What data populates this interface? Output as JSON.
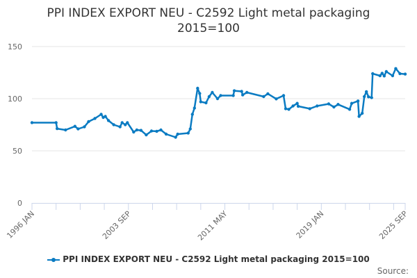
{
  "chart_data": {
    "type": "line",
    "title": "PPI INDEX EXPORT NEU - C2592 Light metal packaging 2015=100",
    "title_lines": [
      "PPI INDEX EXPORT NEU - C2592 Light metal packaging",
      "2015=100"
    ],
    "xlabel": "",
    "ylabel": "",
    "ylim": [
      0,
      150
    ],
    "yticks": [
      0,
      50,
      100,
      150
    ],
    "xrange": [
      "1996-01",
      "2025-09"
    ],
    "xtick_labels": [
      {
        "date": "1996-01",
        "label": "1996 JAN"
      },
      {
        "date": "2003-09",
        "label": "2003 SEP"
      },
      {
        "date": "2011-05",
        "label": "2011 MAY"
      },
      {
        "date": "2019-01",
        "label": "2019 JAN"
      },
      {
        "date": "2025-09",
        "label": "2025 SEP"
      }
    ],
    "grid": "horizontal",
    "legend_position": "bottom",
    "color": "#0a7bc2",
    "series": [
      {
        "name": "PPI INDEX EXPORT NEU - C2592 Light metal packaging 2015=100",
        "points": [
          [
            "1996-01",
            77
          ],
          [
            "1997-12",
            77
          ],
          [
            "1998-01",
            71.3
          ],
          [
            "1998-09",
            70
          ],
          [
            "1999-06",
            73.5
          ],
          [
            "1999-09",
            71
          ],
          [
            "2000-03",
            73
          ],
          [
            "2000-07",
            78
          ],
          [
            "2001-01",
            81
          ],
          [
            "2001-07",
            85
          ],
          [
            "2001-09",
            82
          ],
          [
            "2001-11",
            83
          ],
          [
            "2002-02",
            79
          ],
          [
            "2002-07",
            75
          ],
          [
            "2003-01",
            73
          ],
          [
            "2003-03",
            77
          ],
          [
            "2003-06",
            75
          ],
          [
            "2003-08",
            77
          ],
          [
            "2004-02",
            68
          ],
          [
            "2004-05",
            70
          ],
          [
            "2004-09",
            69.6
          ],
          [
            "2005-02",
            65.3
          ],
          [
            "2005-07",
            69
          ],
          [
            "2005-12",
            68.7
          ],
          [
            "2006-04",
            70
          ],
          [
            "2006-09",
            66
          ],
          [
            "2007-06",
            63
          ],
          [
            "2007-08",
            66
          ],
          [
            "2008-06",
            67
          ],
          [
            "2008-08",
            71
          ],
          [
            "2008-10",
            85
          ],
          [
            "2008-12",
            91
          ],
          [
            "2009-03",
            110
          ],
          [
            "2009-05",
            105
          ],
          [
            "2009-06",
            97
          ],
          [
            "2009-11",
            96
          ],
          [
            "2010-02",
            102
          ],
          [
            "2010-05",
            106
          ],
          [
            "2010-10",
            100
          ],
          [
            "2011-01",
            103
          ],
          [
            "2012-01",
            103
          ],
          [
            "2012-02",
            107.6
          ],
          [
            "2012-09",
            107
          ],
          [
            "2012-10",
            103.6
          ],
          [
            "2013-02",
            106
          ],
          [
            "2014-06",
            102
          ],
          [
            "2014-10",
            104.7
          ],
          [
            "2015-06",
            99.8
          ],
          [
            "2016-01",
            103
          ],
          [
            "2016-03",
            90.4
          ],
          [
            "2016-06",
            89.8
          ],
          [
            "2016-10",
            93
          ],
          [
            "2017-02",
            95.5
          ],
          [
            "2017-03",
            92.7
          ],
          [
            "2018-02",
            90.4
          ],
          [
            "2018-09",
            93
          ],
          [
            "2019-08",
            95
          ],
          [
            "2020-01",
            92
          ],
          [
            "2020-05",
            94.5
          ],
          [
            "2021-04",
            89.8
          ],
          [
            "2021-06",
            95.5
          ],
          [
            "2021-12",
            97.8
          ],
          [
            "2022-01",
            83
          ],
          [
            "2022-04",
            86
          ],
          [
            "2022-06",
            102
          ],
          [
            "2022-08",
            106.7
          ],
          [
            "2022-10",
            101.8
          ],
          [
            "2023-01",
            101
          ],
          [
            "2023-02",
            124
          ],
          [
            "2023-09",
            122
          ],
          [
            "2023-11",
            124.4
          ],
          [
            "2024-01",
            121.8
          ],
          [
            "2024-03",
            126
          ],
          [
            "2024-09",
            122
          ],
          [
            "2024-12",
            128.9
          ],
          [
            "2025-04",
            124
          ],
          [
            "2025-09",
            123.6
          ]
        ]
      }
    ]
  },
  "legend": {
    "label": "PPI INDEX EXPORT NEU - C2592 Light metal packaging 2015=100"
  },
  "source": {
    "label": "Source:"
  }
}
